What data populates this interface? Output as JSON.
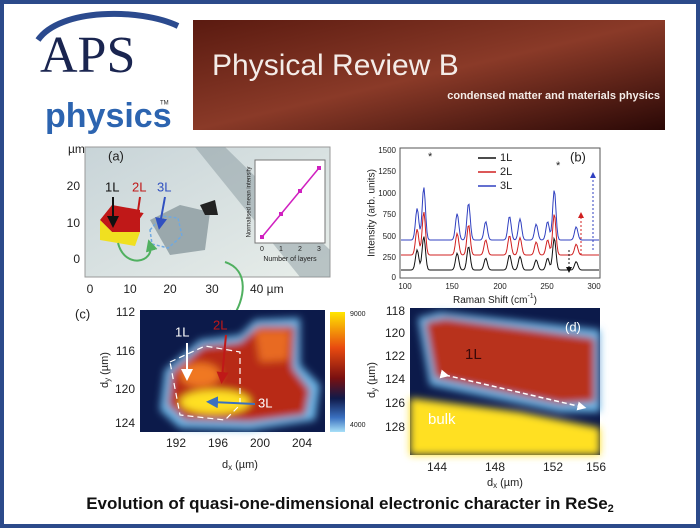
{
  "header": {
    "logo": {
      "name": "APS",
      "subtitle": "physics",
      "tm": "TM"
    },
    "journal": {
      "title": "Physical Review B",
      "subtitle": "condensed matter and materials physics"
    }
  },
  "panels": {
    "a": {
      "label": "(a)",
      "unit": "µm",
      "yticks": [
        "20",
        "10",
        "0"
      ],
      "xticks": [
        "0",
        "10",
        "20",
        "30",
        "40 µm"
      ],
      "layers": [
        "1L",
        "2L",
        "3L"
      ],
      "inset": {
        "ylabel": "Normalised mean intensity",
        "xlabel": "Number of layers",
        "xticks": [
          "0",
          "1",
          "2",
          "3"
        ]
      }
    },
    "b": {
      "label": "(b)",
      "ylabel": "Intensity (arb. units)",
      "xlabel": [
        "Raman Shift (cm",
        "-1",
        ")"
      ],
      "yticks": [
        "1500",
        "1250",
        "1000",
        "750",
        "500",
        "250",
        "0"
      ],
      "xticks": [
        "100",
        "150",
        "200",
        "250",
        "300"
      ],
      "legend": [
        "1L",
        "2L",
        "3L"
      ],
      "peak_markers": [
        "*",
        "*"
      ]
    },
    "c": {
      "label": "(c)",
      "ylabel": [
        "d",
        "y",
        "(µm)"
      ],
      "xlabel": [
        "d",
        "x",
        "(µm)"
      ],
      "yticks": [
        "112",
        "116",
        "120",
        "124"
      ],
      "xticks": [
        "192",
        "196",
        "200",
        "204"
      ],
      "colorbar": [
        "9000",
        "4000"
      ],
      "layers": [
        "1L",
        "2L",
        "3L"
      ]
    },
    "d": {
      "label": "(d)",
      "ylabel": [
        "d",
        "y",
        "(µm)"
      ],
      "xlabel": [
        "d",
        "x",
        "(µm)"
      ],
      "yticks": [
        "118",
        "120",
        "122",
        "124",
        "126",
        "128"
      ],
      "xticks": [
        "144",
        "148",
        "152",
        "156"
      ],
      "regions": [
        "1L",
        "bulk"
      ]
    }
  },
  "footer": {
    "title": "Evolution of quasi-one-dimensional electronic character in ReSe",
    "subscript": "2"
  }
}
